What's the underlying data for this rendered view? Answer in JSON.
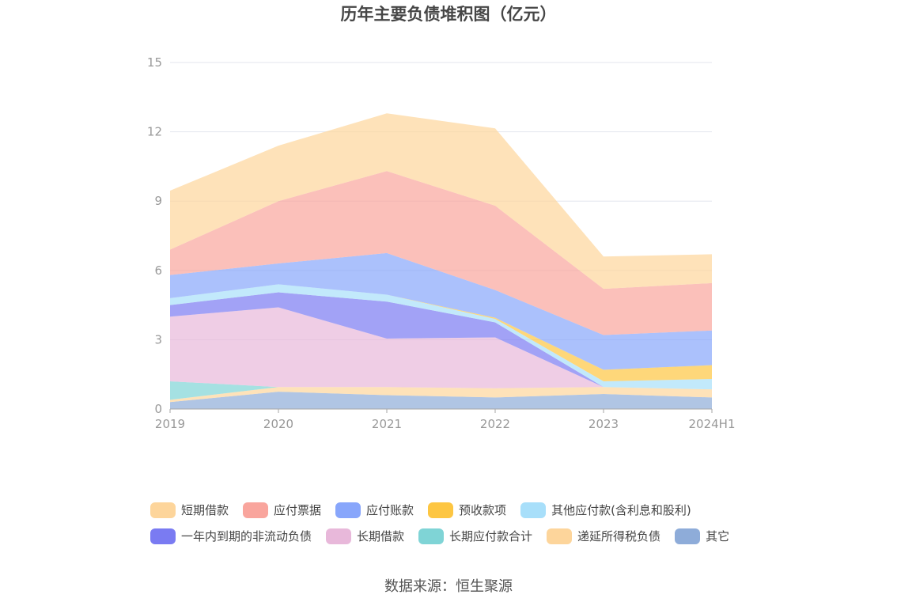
{
  "chart_data": {
    "type": "area",
    "stacked": true,
    "title": "历年主要负债堆积图（亿元）",
    "categories": [
      "2019",
      "2020",
      "2021",
      "2022",
      "2023",
      "2024H1"
    ],
    "ylim": [
      0,
      15
    ],
    "yticks": [
      0,
      3,
      6,
      9,
      12,
      15
    ],
    "grid": true,
    "legend_position": "bottom",
    "series": [
      {
        "name": "其它",
        "color": "#8eacd9",
        "values": [
          0.3,
          0.75,
          0.6,
          0.5,
          0.65,
          0.5
        ]
      },
      {
        "name": "递延所得税负债",
        "color": "#fdd59b",
        "values": [
          0.1,
          0.2,
          0.35,
          0.4,
          0.3,
          0.35
        ]
      },
      {
        "name": "长期应付款合计",
        "color": "#7fd4d6",
        "values": [
          0.8,
          0.0,
          0.0,
          0.0,
          0.0,
          0.0
        ]
      },
      {
        "name": "长期借款",
        "color": "#e8b8da",
        "values": [
          2.8,
          3.45,
          2.1,
          2.2,
          0.0,
          0.0
        ]
      },
      {
        "name": "一年内到期的非流动负债",
        "color": "#7a7bf2",
        "values": [
          0.5,
          0.65,
          1.6,
          0.65,
          0.0,
          0.0
        ]
      },
      {
        "name": "其他应付款(含利息和股利)",
        "color": "#a8dffa",
        "values": [
          0.3,
          0.35,
          0.3,
          0.15,
          0.25,
          0.45
        ]
      },
      {
        "name": "预收款项",
        "color": "#fdc642",
        "values": [
          0.0,
          0.0,
          0.0,
          0.05,
          0.5,
          0.6
        ]
      },
      {
        "name": "应付账款",
        "color": "#88a6fb",
        "values": [
          1.0,
          0.9,
          1.8,
          1.2,
          1.5,
          1.5
        ]
      },
      {
        "name": "应付票据",
        "color": "#f9a59d",
        "values": [
          1.1,
          2.7,
          3.55,
          3.65,
          2.0,
          2.05
        ]
      },
      {
        "name": "短期借款",
        "color": "#fdd59b",
        "values": [
          2.55,
          2.4,
          2.5,
          3.35,
          1.4,
          1.25
        ]
      }
    ]
  },
  "legend": {
    "row1": [
      {
        "name": "短期借款",
        "color": "#fdd59b"
      },
      {
        "name": "应付票据",
        "color": "#f9a59d"
      },
      {
        "name": "应付账款",
        "color": "#88a6fb"
      },
      {
        "name": "预收款项",
        "color": "#fdc642"
      },
      {
        "name": "其他应付款(含利息和股利)",
        "color": "#a8dffa"
      }
    ],
    "row2": [
      {
        "name": "一年内到期的非流动负债",
        "color": "#7a7bf2"
      },
      {
        "name": "长期借款",
        "color": "#e8b8da"
      },
      {
        "name": "长期应付款合计",
        "color": "#7fd4d6"
      },
      {
        "name": "递延所得税负债",
        "color": "#fdd59b"
      },
      {
        "name": "其它",
        "color": "#8eacd9"
      }
    ]
  },
  "source": "数据来源：恒生聚源"
}
